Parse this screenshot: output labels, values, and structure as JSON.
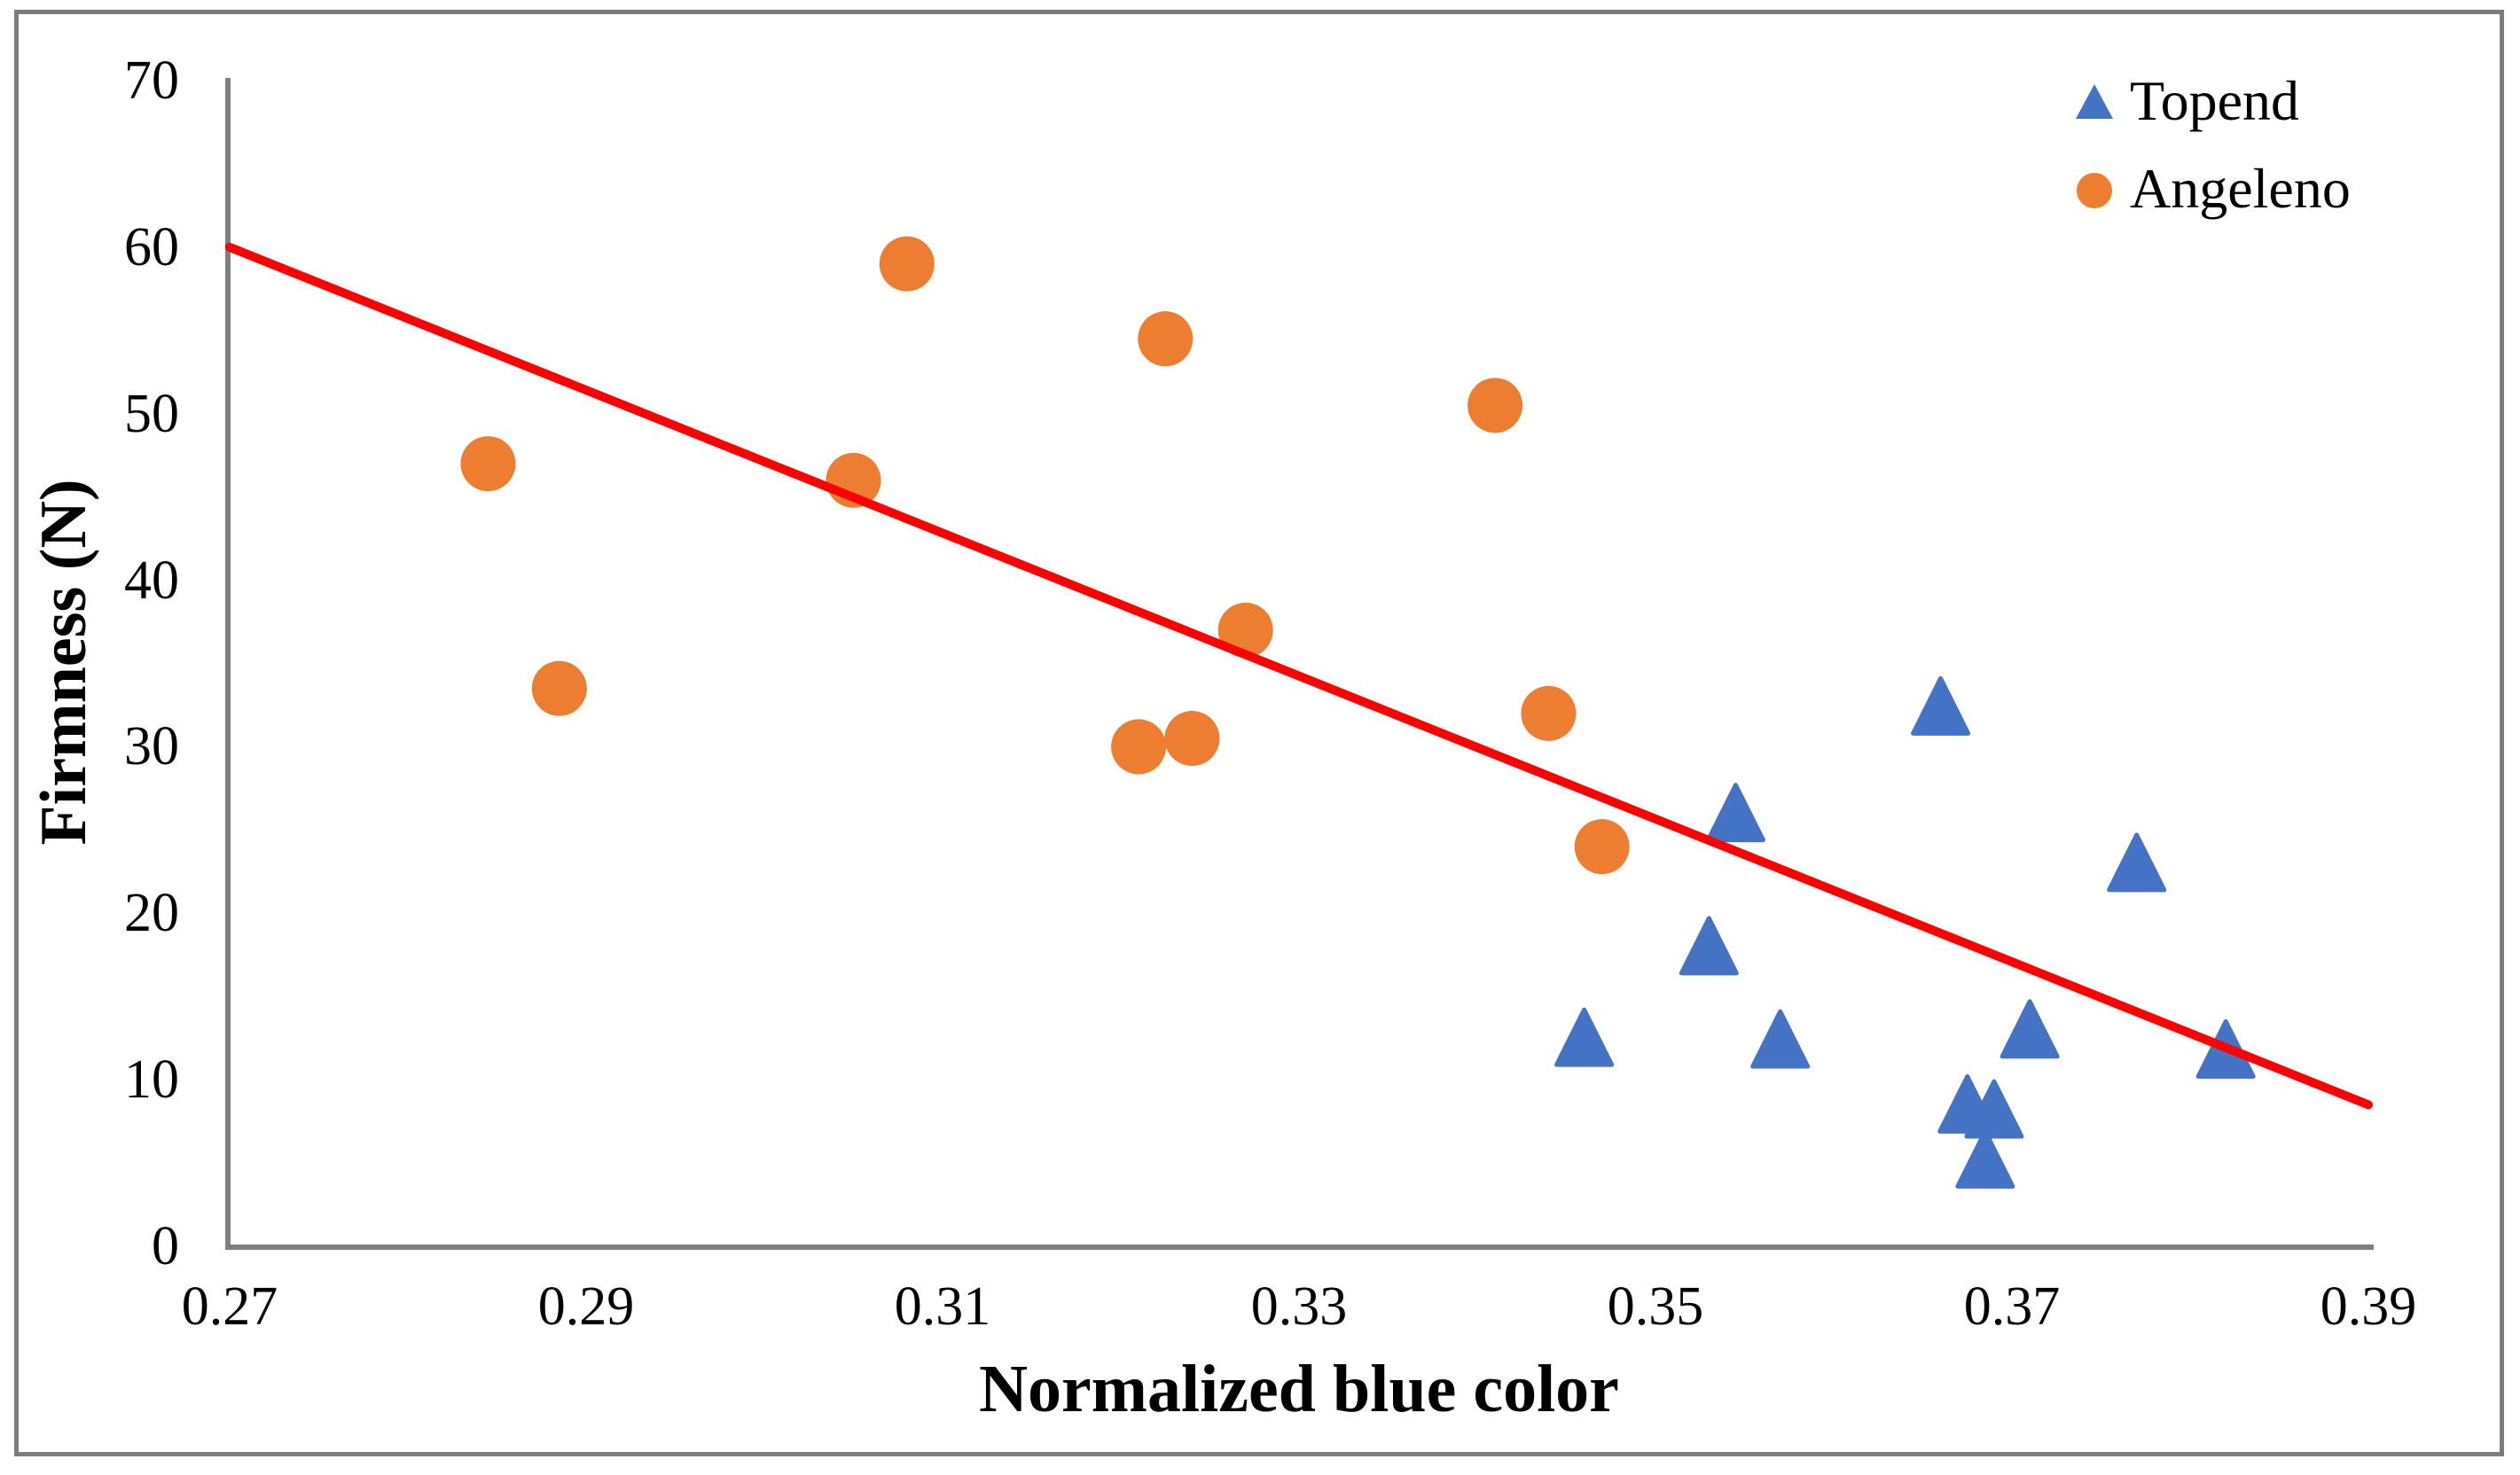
{
  "figure": {
    "background": "#ffffff",
    "border_color": "#7c7c7c"
  },
  "chart_data": {
    "type": "scatter",
    "title": "",
    "xlabel": "Normalized blue color",
    "ylabel": "Firmness (N)",
    "xlim": [
      0.27,
      0.39
    ],
    "ylim": [
      0,
      70
    ],
    "x_ticks": [
      "0.27",
      "0.29",
      "0.31",
      "0.33",
      "0.35",
      "0.37",
      "0.39"
    ],
    "y_ticks": [
      "0",
      "10",
      "20",
      "30",
      "40",
      "50",
      "60",
      "70"
    ],
    "grid": false,
    "legend_position": "top-right-inside",
    "axis_color": "#7f7f7f",
    "series": [
      {
        "name": "Topend",
        "marker": "triangle",
        "color": "#4472C4",
        "points": [
          [
            0.346,
            12.5
          ],
          [
            0.353,
            18
          ],
          [
            0.3545,
            26
          ],
          [
            0.357,
            12.4
          ],
          [
            0.366,
            32.4
          ],
          [
            0.3675,
            8.5
          ],
          [
            0.369,
            8.2
          ],
          [
            0.3685,
            5.2
          ],
          [
            0.371,
            13
          ],
          [
            0.377,
            23
          ],
          [
            0.382,
            11.8
          ]
        ]
      },
      {
        "name": "Angeleno",
        "marker": "circle",
        "color": "#ED7D31",
        "points": [
          [
            0.2845,
            47
          ],
          [
            0.2885,
            33.5
          ],
          [
            0.305,
            46
          ],
          [
            0.308,
            59
          ],
          [
            0.321,
            30
          ],
          [
            0.3225,
            54.5
          ],
          [
            0.324,
            30.5
          ],
          [
            0.327,
            37
          ],
          [
            0.341,
            50.5
          ],
          [
            0.344,
            32
          ],
          [
            0.347,
            24
          ]
        ]
      }
    ],
    "trendline": {
      "x1": 0.27,
      "y1": 60,
      "x2": 0.39,
      "y2": 8.5,
      "color": "#FF0000"
    }
  }
}
